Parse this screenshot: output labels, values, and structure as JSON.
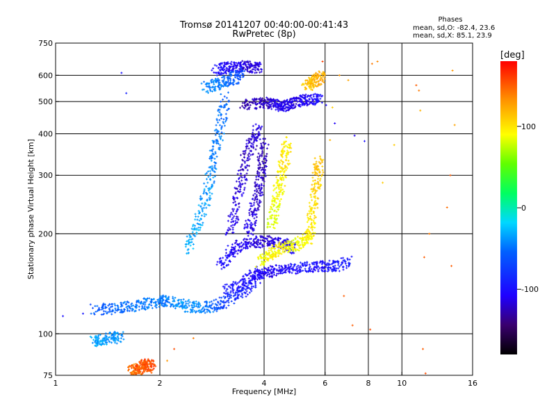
{
  "chart_data": {
    "type": "scatter",
    "title": "Tromsø 20141207 00:40:00-00:41:43",
    "subtitle": "RwPretec (8p)",
    "xlabel": "Frequency [MHz]",
    "ylabel": "Stationary phase Virtual Height [km]",
    "x_scale": "log",
    "y_scale": "log",
    "xlim": [
      1,
      16
    ],
    "ylim": [
      75,
      750
    ],
    "x_ticks": [
      1,
      2,
      4,
      6,
      8,
      10,
      16
    ],
    "x_tick_labels": [
      "1",
      "2",
      "4",
      "6",
      "8",
      "10",
      "16"
    ],
    "y_ticks": [
      75,
      100,
      200,
      300,
      400,
      500,
      600,
      750
    ],
    "y_tick_labels": [
      "75",
      "100",
      "200",
      "300",
      "400",
      "500",
      "600",
      "750"
    ],
    "x_grid": [
      2,
      4,
      6,
      8,
      10
    ],
    "y_grid": [
      100,
      200,
      300,
      400,
      500,
      600
    ],
    "grid": true,
    "phases_box": {
      "title": "Phases",
      "line_o": "mean, sd,O: -82.4, 23.6",
      "line_x": "mean, sd,X:  85.1, 23.9"
    },
    "colorbar": {
      "label": "[deg]",
      "range": [
        -180,
        180
      ],
      "ticks": [
        100,
        0,
        -100
      ],
      "tick_labels": [
        "100",
        "0",
        "-100"
      ]
    },
    "series": [
      {
        "mode": "O",
        "segments": [
          {
            "x": [
              1.3,
              1.45,
              1.6,
              1.75,
              1.9,
              2.05,
              2.2,
              2.4,
              2.6,
              2.85,
              3.1,
              3.4,
              3.7,
              3.95
            ],
            "y": [
              118,
              119,
              120,
              122,
              124,
              126,
              124,
              121,
              120,
              121,
              125,
              132,
              142,
              155
            ],
            "phase": [
              -60,
              -55,
              -50,
              -48,
              -45,
              -50,
              -40,
              -38,
              -42,
              -55,
              -75,
              -90,
              -95,
              -100
            ]
          },
          {
            "x": [
              1.3,
              1.35,
              1.45,
              1.55
            ],
            "y": [
              95,
              96,
              97,
              98
            ],
            "phase": [
              -35,
              -35,
              -38,
              -40
            ]
          },
          {
            "x": [
              3.1,
              3.4,
              3.7,
              4.0,
              4.3,
              4.7,
              5.1,
              5.6,
              6.0,
              6.5,
              7.0
            ],
            "y": [
              135,
              140,
              150,
              152,
              155,
              157,
              158,
              159,
              160,
              160,
              165
            ],
            "phase": [
              -95,
              -100,
              -105,
              -110,
              -110,
              -105,
              -100,
              -100,
              -100,
              -95,
              -95
            ]
          },
          {
            "x": [
              3.0,
              3.2,
              3.4,
              3.7,
              4.0,
              4.3,
              4.6,
              4.85
            ],
            "y": [
              160,
              175,
              185,
              188,
              190,
              188,
              185,
              180
            ],
            "phase": [
              -100,
              -105,
              -110,
              -115,
              -120,
              -115,
              -110,
              -105
            ]
          },
          {
            "x": [
              3.6,
              3.7,
              3.8,
              3.9,
              3.95,
              4.0
            ],
            "y": [
              200,
              225,
              255,
              290,
              330,
              380
            ],
            "phase": [
              -110,
              -115,
              -120,
              -120,
              -125,
              -120
            ]
          },
          {
            "x": [
              3.5,
              3.8,
              4.1,
              4.3,
              4.5,
              4.7,
              4.9,
              5.2,
              5.5,
              5.9
            ],
            "y": [
              490,
              495,
              495,
              490,
              485,
              490,
              500,
              505,
              510,
              505
            ],
            "phase": [
              -130,
              -125,
              -120,
              -115,
              -110,
              -110,
              -115,
              -110,
              -105,
              -100
            ]
          },
          {
            "x": [
              2.9,
              3.1,
              3.3,
              3.5,
              3.7,
              3.9
            ],
            "y": [
              620,
              630,
              635,
              640,
              635,
              630
            ],
            "phase": [
              -100,
              -105,
              -110,
              -115,
              -120,
              -115
            ]
          },
          {
            "x": [
              2.4,
              2.55,
              2.7,
              2.8,
              2.9,
              3.0,
              3.1
            ],
            "y": [
              180,
              210,
              250,
              300,
              360,
              430,
              520
            ],
            "phase": [
              -30,
              -32,
              -35,
              -40,
              -45,
              -50,
              -55
            ]
          },
          {
            "x": [
              3.2,
              3.3,
              3.45,
              3.55,
              3.7,
              3.85
            ],
            "y": [
              200,
              240,
              290,
              340,
              380,
              420
            ],
            "phase": [
              -110,
              -115,
              -120,
              -125,
              -120,
              -115
            ]
          },
          {
            "x": [
              2.7,
              2.9,
              3.1,
              3.3,
              3.5
            ],
            "y": [
              550,
              560,
              570,
              590,
              610
            ],
            "phase": [
              -40,
              -45,
              -50,
              -60,
              -70
            ]
          }
        ]
      },
      {
        "mode": "X",
        "segments": [
          {
            "x": [
              1.65,
              1.7,
              1.75,
              1.8,
              1.85,
              1.9
            ],
            "y": [
              77,
              78,
              79,
              80,
              81,
              79
            ],
            "phase": [
              150,
              140,
              155,
              145,
              160,
              150
            ]
          },
          {
            "x": [
              3.9,
              4.1,
              4.3,
              4.6,
              4.9,
              5.2,
              5.5
            ],
            "y": [
              165,
              172,
              178,
              182,
              185,
              190,
              195
            ],
            "phase": [
              85,
              90,
              95,
              90,
              85,
              90,
              95
            ]
          },
          {
            "x": [
              4.2,
              4.3,
              4.4,
              4.5,
              4.6,
              4.7
            ],
            "y": [
              210,
              240,
              270,
              300,
              340,
              380
            ],
            "phase": [
              80,
              85,
              90,
              95,
              100,
              95
            ]
          },
          {
            "x": [
              5.4,
              5.5,
              5.6,
              5.7,
              5.8
            ],
            "y": [
              200,
              220,
              260,
              300,
              340
            ],
            "phase": [
              95,
              100,
              105,
              110,
              115
            ]
          },
          {
            "x": [
              5.3,
              5.5,
              5.7,
              5.9
            ],
            "y": [
              555,
              570,
              580,
              600
            ],
            "phase": [
              110,
              115,
              120,
              125
            ]
          }
        ]
      },
      {
        "mode": "scatter",
        "x": [
          1.05,
          1.2,
          1.55,
          1.6,
          2.1,
          2.2,
          2.5,
          3.1,
          6.2,
          6.6,
          7.0,
          7.3,
          7.8,
          8.2,
          8.5,
          8.8,
          9.5,
          11.0,
          11.2,
          11.3,
          11.5,
          11.7,
          12.0,
          13.5,
          13.8,
          14.0,
          14.2,
          6.8,
          7.2,
          8.1,
          11.6,
          13.9,
          6.4,
          5.9,
          6.3
        ],
        "y": [
          113,
          115,
          610,
          530,
          83,
          90,
          97,
          75,
          383,
          600,
          580,
          395,
          380,
          650,
          660,
          285,
          370,
          560,
          540,
          470,
          90,
          76,
          200,
          240,
          300,
          620,
          425,
          130,
          106,
          103,
          170,
          160,
          430,
          660,
          480
        ],
        "phase": [
          -100,
          -95,
          -100,
          -90,
          130,
          155,
          140,
          150,
          120,
          130,
          125,
          -110,
          -100,
          140,
          135,
          110,
          110,
          150,
          140,
          120,
          150,
          155,
          140,
          145,
          150,
          130,
          125,
          150,
          150,
          155,
          150,
          150,
          -110,
          160,
          110
        ]
      }
    ]
  }
}
